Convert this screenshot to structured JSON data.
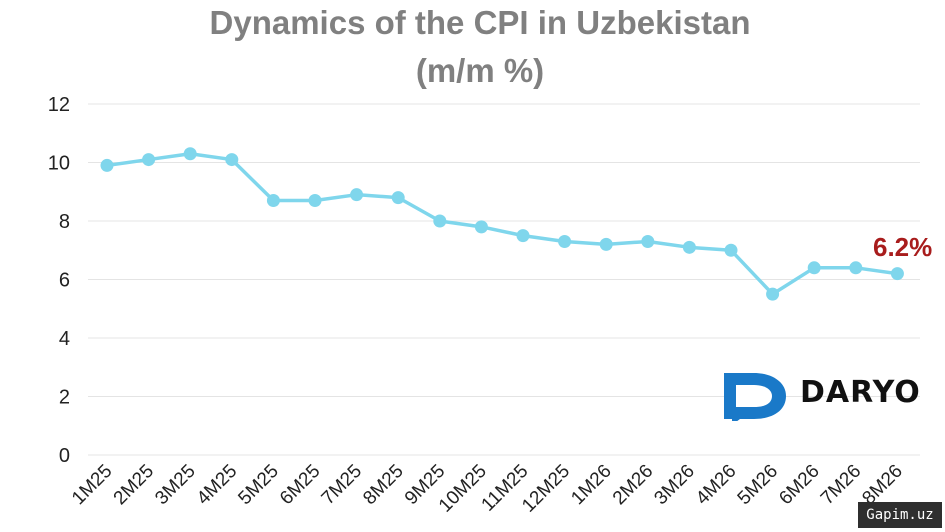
{
  "chart_data": {
    "type": "line",
    "title": "Dynamics of the CPI in Uzbekistan",
    "subtitle": "(m/m %)",
    "categories": [
      "1M25",
      "2M25",
      "3M25",
      "4M25",
      "5M25",
      "6M25",
      "7M25",
      "8M25",
      "9M25",
      "10M25",
      "11M25",
      "12M25",
      "1M26",
      "2M26",
      "3M26",
      "4M26",
      "5M26",
      "6M26",
      "7M26",
      "8M26"
    ],
    "series": [
      {
        "values": [
          9.9,
          10.1,
          10.3,
          10.1,
          8.7,
          8.7,
          8.9,
          8.8,
          8.0,
          7.8,
          7.5,
          7.3,
          7.2,
          7.3,
          7.1,
          7.0,
          5.5,
          6.4,
          6.4,
          6.2
        ]
      }
    ],
    "ylim": [
      0,
      12
    ],
    "yticks": [
      0,
      2,
      4,
      6,
      8,
      10,
      12
    ],
    "grid": true,
    "line_color": "#7fd6ec",
    "annotation": {
      "text": "6.2%",
      "color": "#a81c1c"
    }
  },
  "logo": {
    "text": "DARYO",
    "color": "#1a79c8"
  },
  "watermark": {
    "text": "Gapim.uz"
  }
}
